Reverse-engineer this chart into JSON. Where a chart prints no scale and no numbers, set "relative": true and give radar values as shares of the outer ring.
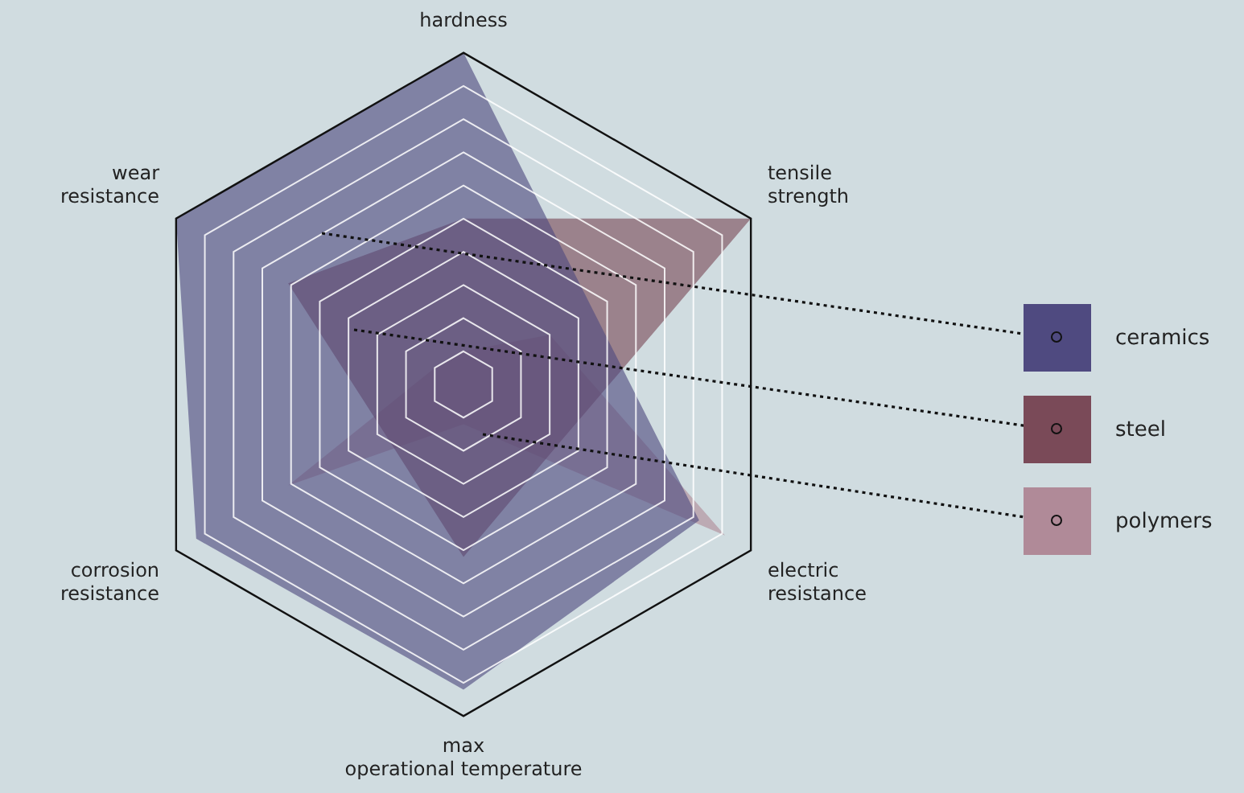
{
  "chart_data": {
    "type": "radar",
    "relative": true,
    "legend": "right",
    "grid": true,
    "categories": [
      "hardness",
      "tensile strength",
      "electric resistance",
      "max operational temperature",
      "corrosion resistance",
      "wear resistance"
    ],
    "series": [
      {
        "name": "ceramics",
        "color": "#4f4a80",
        "values": [
          1.0,
          0.45,
          0.82,
          0.92,
          0.93,
          1.0
        ]
      },
      {
        "name": "steel",
        "color": "#7a4a58",
        "values": [
          0.5,
          1.0,
          0.34,
          0.52,
          0.28,
          0.61
        ]
      },
      {
        "name": "polymers",
        "color": "#b08a98",
        "values": [
          0.1,
          0.3,
          0.91,
          0.12,
          0.61,
          0.1
        ]
      }
    ]
  }
}
